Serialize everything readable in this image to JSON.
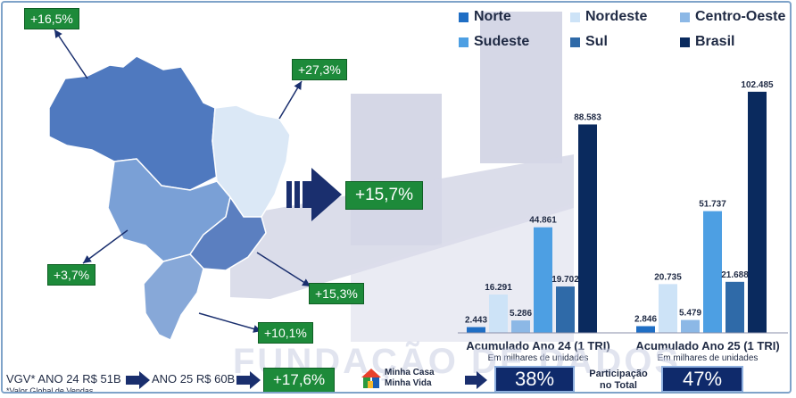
{
  "colors": {
    "Norte": "#1f6ec4",
    "Nordeste": "#cde3f7",
    "Centro-Oeste": "#8cb8e6",
    "Sudeste": "#4d9fe3",
    "Sul": "#2f6aa8",
    "Brasil": "#0a2a5e"
  },
  "map": {
    "badges": {
      "norte": "+16,5%",
      "nordeste": "+27,3%",
      "centro_oeste": "+3,7%",
      "sudeste": "+15,3%",
      "sul": "+10,1%",
      "brasil": "+15,7%"
    }
  },
  "chart_data": {
    "type": "bar",
    "categories": [
      "Acumulado Ano 24 (1 TRI)",
      "Acumulado Ano 25 (1 TRI)"
    ],
    "subtitle": "Em milhares de unidades",
    "series": [
      {
        "name": "Norte",
        "values": [
          2.443,
          2.846
        ],
        "labels": [
          "2.443",
          "2.846"
        ]
      },
      {
        "name": "Nordeste",
        "values": [
          16.291,
          20.735
        ],
        "labels": [
          "16.291",
          "20.735"
        ]
      },
      {
        "name": "Centro-Oeste",
        "values": [
          5.286,
          5.479
        ],
        "labels": [
          "5.286",
          "5.479"
        ]
      },
      {
        "name": "Sudeste",
        "values": [
          44.861,
          51.737
        ],
        "labels": [
          "44.861",
          "51.737"
        ]
      },
      {
        "name": "Sul",
        "values": [
          19.702,
          21.688
        ],
        "labels": [
          "19.702",
          "21.688"
        ]
      },
      {
        "name": "Brasil",
        "values": [
          88.583,
          102.485
        ],
        "labels": [
          "88.583",
          "102.485"
        ]
      }
    ],
    "ylim": [
      0,
      110
    ],
    "legend": "top",
    "grid": false
  },
  "bottom": {
    "vgv24": "VGV* ANO 24 R$ 51B",
    "vgv25": "ANO 25 R$ 60B",
    "footnote": "*Valor Global de Vendas",
    "vgv_growth": "+17,6%",
    "logo_line1": "Minha Casa",
    "logo_line2": "Minha Vida",
    "share24": "38%",
    "share_label": "Participação no Total",
    "share25": "47%"
  },
  "watermark": "FUNDAÇÃO DE DADOS"
}
